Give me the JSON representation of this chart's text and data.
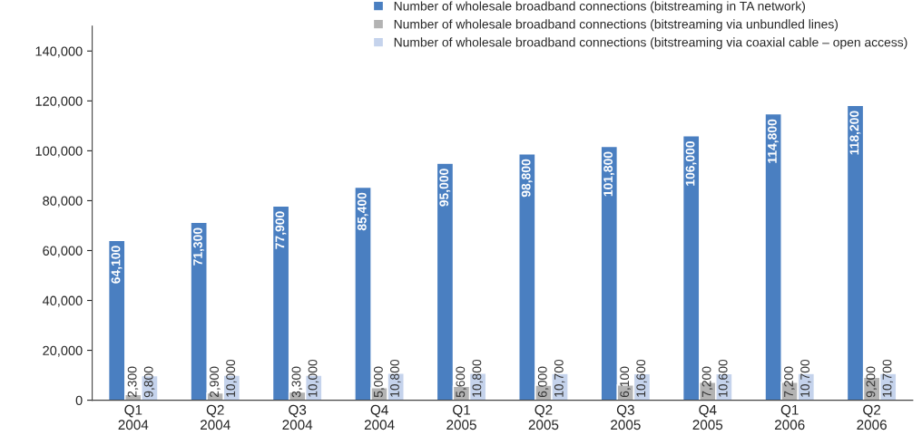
{
  "chart_data": {
    "type": "bar",
    "categories": [
      "Q1\n2004",
      "Q2\n2004",
      "Q3\n2004",
      "Q4\n2004",
      "Q1\n2005",
      "Q2\n2005",
      "Q3\n2005",
      "Q4\n2005",
      "Q1\n2006",
      "Q2\n2006"
    ],
    "series": [
      {
        "name": "Number of wholesale broadband connections (bitstreaming in TA network)",
        "color": "#4a7fc1",
        "values": [
          64100,
          71300,
          77900,
          85400,
          95000,
          98800,
          101800,
          106000,
          114800,
          118200
        ],
        "value_labels": [
          "64,100",
          "71,300",
          "77,900",
          "85,400",
          "95,000",
          "98,800",
          "101,800",
          "106,000",
          "114,800",
          "118,200"
        ]
      },
      {
        "name": "Number of wholesale broadband connections (bitstreaming via unbundled lines)",
        "color": "#b3b3b3",
        "values": [
          2300,
          2900,
          3300,
          5000,
          5600,
          6000,
          6100,
          7200,
          7200,
          9200
        ],
        "value_labels": [
          "2,300",
          "2,900",
          "3,300",
          "5,000",
          "5,600",
          "6,000",
          "6,100",
          "7,200",
          "7,200",
          "9,200"
        ]
      },
      {
        "name": "Number of wholesale broadband connections (bitstreaming via coaxial cable – open access)",
        "color": "#c5d3ec",
        "values": [
          9800,
          10000,
          10000,
          10800,
          10800,
          10700,
          10600,
          10600,
          10700,
          10700
        ],
        "value_labels": [
          "9,800",
          "10,000",
          "10,000",
          "10,800",
          "10,800",
          "10,700",
          "10,600",
          "10,600",
          "10,700",
          "10,700"
        ]
      }
    ],
    "ylim": [
      0,
      150000
    ],
    "yticks": [
      0,
      {
        "value": 20000,
        "label": "20,000"
      },
      {
        "value": 40000,
        "label": "40,000"
      },
      {
        "value": 60000,
        "label": "60,000"
      },
      {
        "value": 80000,
        "label": "80,000"
      },
      {
        "value": 100000,
        "label": "100,000"
      },
      {
        "value": 120000,
        "label": "120,000"
      },
      {
        "value": 140000,
        "label": "140,000"
      }
    ],
    "legend": "top right",
    "grid": false
  }
}
